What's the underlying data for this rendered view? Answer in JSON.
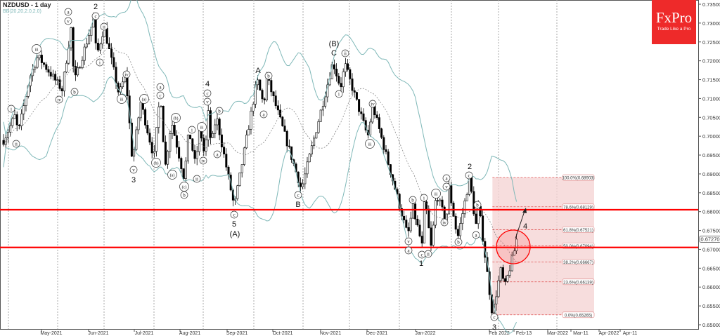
{
  "header": {
    "symbol_title": "NZDUSD - 1 day",
    "indicator": "BB(20,20,2.0,2.0)"
  },
  "logo": {
    "brand": "FxPro",
    "tagline": "Trade Like a Pro",
    "color": "#ee2a2a"
  },
  "chart_data": {
    "type": "candlestick",
    "symbol": "NZDUSD",
    "timeframe": "1 day",
    "ylim": [
      0.65,
      0.735
    ],
    "y_ticks": [
      "0.73500",
      "0.73000",
      "0.72500",
      "0.72000",
      "0.71500",
      "0.71000",
      "0.70500",
      "0.70000",
      "0.69500",
      "0.69000",
      "0.68500",
      "0.68000",
      "0.67500",
      "0.67000",
      "0.66500",
      "0.66000",
      "0.65500",
      "0.65000"
    ],
    "x_ticks": [
      "May-2021",
      "Jun-2021",
      "Jul-2021",
      "Aug-2021",
      "Sep-2021",
      "Oct-2021",
      "Nov-2021",
      "Dec-2021",
      "Jan-2022",
      "Feb 2022",
      "Feb-13",
      "Mar-2022",
      "Mar-11",
      "Apr-2022",
      "Apr-11"
    ],
    "current_price": "0.67270",
    "price_path": [
      [
        "2021-03-29",
        0.6989
      ],
      [
        "2021-04-05",
        0.7054
      ],
      [
        "2021-04-07",
        0.7008
      ],
      [
        "2021-04-14",
        0.7157
      ],
      [
        "2021-04-19",
        0.7212
      ],
      [
        "2021-05-04",
        0.7123
      ],
      [
        "2021-05-10",
        0.7287
      ],
      [
        "2021-05-12",
        0.7142
      ],
      [
        "2021-05-25",
        0.7309
      ],
      [
        "2021-05-27",
        0.7212
      ],
      [
        "2021-06-01",
        0.729
      ],
      [
        "2021-06-10",
        0.711
      ],
      [
        "2021-06-14",
        0.7166
      ],
      [
        "2021-06-18",
        0.6933
      ],
      [
        "2021-06-23",
        0.7091
      ],
      [
        "2021-07-01",
        0.6943
      ],
      [
        "2021-07-05",
        0.7119
      ],
      [
        "2021-07-08",
        0.6915
      ],
      [
        "2021-07-12",
        0.7041
      ],
      [
        "2021-07-20",
        0.6887
      ],
      [
        "2021-07-23",
        0.7017
      ],
      [
        "2021-07-27",
        0.6924
      ],
      [
        "2021-07-30",
        0.7023
      ],
      [
        "2021-08-02",
        0.6943
      ],
      [
        "2021-08-04",
        0.7064
      ],
      [
        "2021-08-06",
        0.6974
      ],
      [
        "2021-08-09",
        0.7054
      ],
      [
        "2021-08-20",
        0.6812
      ],
      [
        "2021-09-03",
        0.715
      ],
      [
        "2021-09-07",
        0.7082
      ],
      [
        "2021-09-09",
        0.7157
      ],
      [
        "2021-09-30",
        0.6859
      ],
      [
        "2021-10-21",
        0.7197
      ],
      [
        "2021-10-26",
        0.7129
      ],
      [
        "2021-10-29",
        0.719
      ],
      [
        "2021-11-12",
        0.6998
      ],
      [
        "2021-11-15",
        0.7082
      ],
      [
        "2021-12-06",
        0.6735
      ],
      [
        "2021-12-09",
        0.6812
      ],
      [
        "2021-12-15",
        0.67
      ],
      [
        "2021-12-16",
        0.684
      ],
      [
        "2021-12-20",
        0.6701
      ],
      [
        "2021-12-23",
        0.685
      ],
      [
        "2021-12-29",
        0.677
      ],
      [
        "2021-12-30",
        0.6878
      ],
      [
        "2022-01-05",
        0.6729
      ],
      [
        "2022-01-13",
        0.689
      ],
      [
        "2022-01-17",
        0.676
      ],
      [
        "2022-01-19",
        0.6816
      ],
      [
        "2022-01-28",
        0.65265
      ],
      [
        "2022-02-02",
        0.6645
      ],
      [
        "2022-02-04",
        0.6599
      ],
      [
        "2022-02-10",
        0.6727
      ]
    ],
    "horizontal_levels": [
      {
        "value": 0.6805,
        "color": "#ff0000"
      },
      {
        "value": 0.6705,
        "color": "#ff0000"
      }
    ],
    "fibonacci": {
      "from": [
        "2022-01-13",
        0.68903
      ],
      "to": [
        "2022-01-28",
        0.65265
      ],
      "levels": [
        {
          "label": "100.0%(0.68903)",
          "value": 0.68903
        },
        {
          "label": "78.6%(0.68129)",
          "value": 0.68129
        },
        {
          "label": "61.8%(0.67521)",
          "value": 0.67521
        },
        {
          "label": "50.0%(0.67094)",
          "value": 0.67094
        },
        {
          "label": "38.2%(0.66667)",
          "value": 0.66667
        },
        {
          "label": "23.6%(0.66139)",
          "value": 0.66139
        },
        {
          "label": "0.0%(0.65265)",
          "value": 0.65265
        }
      ]
    },
    "wave_labels": [
      {
        "text": "i",
        "c": true
      },
      {
        "text": "ii",
        "c": true
      },
      {
        "text": "iii",
        "c": true
      },
      {
        "text": "iv",
        "c": true
      },
      {
        "text": "a",
        "c": true
      },
      {
        "text": "v",
        "c": true
      },
      {
        "text": "b",
        "c": true
      },
      {
        "text": "c",
        "c": true
      },
      {
        "text": "2",
        "c": false
      },
      {
        "text": "ii",
        "c": true
      },
      {
        "text": "i",
        "c": true
      },
      {
        "text": "iv",
        "c": true
      },
      {
        "text": "iii",
        "c": true
      },
      {
        "text": "v",
        "c": true
      },
      {
        "text": "3",
        "c": false
      },
      {
        "text": "(a)",
        "c": true
      },
      {
        "text": "(b)",
        "c": true
      },
      {
        "text": "a",
        "c": true
      },
      {
        "text": "c",
        "c": true
      },
      {
        "text": "(a)",
        "c": true
      },
      {
        "text": "(b)",
        "c": true
      },
      {
        "text": "(c)",
        "c": true
      },
      {
        "text": "b",
        "c": true
      },
      {
        "text": "i",
        "c": true
      },
      {
        "text": "ii",
        "c": true
      },
      {
        "text": "iii",
        "c": true
      },
      {
        "text": "iv",
        "c": true
      },
      {
        "text": "4",
        "c": false
      },
      {
        "text": "c",
        "c": true
      },
      {
        "text": "v",
        "c": true
      },
      {
        "text": "a",
        "c": true
      },
      {
        "text": "b",
        "c": true
      },
      {
        "text": "c",
        "c": true
      },
      {
        "text": "5",
        "c": false
      },
      {
        "text": "(A)",
        "c": false
      },
      {
        "text": "A",
        "c": false
      },
      {
        "text": "a",
        "c": true
      },
      {
        "text": "b",
        "c": true
      },
      {
        "text": "c",
        "c": true
      },
      {
        "text": "B",
        "c": false
      },
      {
        "text": "(B)",
        "c": false
      },
      {
        "text": "C",
        "c": false
      },
      {
        "text": "ii",
        "c": true
      },
      {
        "text": "i",
        "c": true
      },
      {
        "text": "iv",
        "c": true
      },
      {
        "text": "iii",
        "c": true
      },
      {
        "text": "b",
        "c": true
      },
      {
        "text": "v",
        "c": true
      },
      {
        "text": "a",
        "c": true
      },
      {
        "text": "i",
        "c": true
      },
      {
        "text": "c",
        "c": true
      },
      {
        "text": "ii",
        "c": true
      },
      {
        "text": "1",
        "c": false
      },
      {
        "text": "iii",
        "c": true
      },
      {
        "text": "a",
        "c": true
      },
      {
        "text": "v",
        "c": true
      },
      {
        "text": "iv",
        "c": true
      },
      {
        "text": "b",
        "c": true
      },
      {
        "text": "2",
        "c": false
      },
      {
        "text": "c",
        "c": true
      },
      {
        "text": "b",
        "c": true
      },
      {
        "text": "a",
        "c": true
      },
      {
        "text": "c",
        "c": true
      },
      {
        "text": "3",
        "c": false
      },
      {
        "text": "4",
        "c": false
      }
    ],
    "colors": {
      "bollinger": "#7fb8b8",
      "fib_zone": "#f5d5d5",
      "fib_line": "#e05050",
      "target_circle": "#ff0000"
    }
  }
}
